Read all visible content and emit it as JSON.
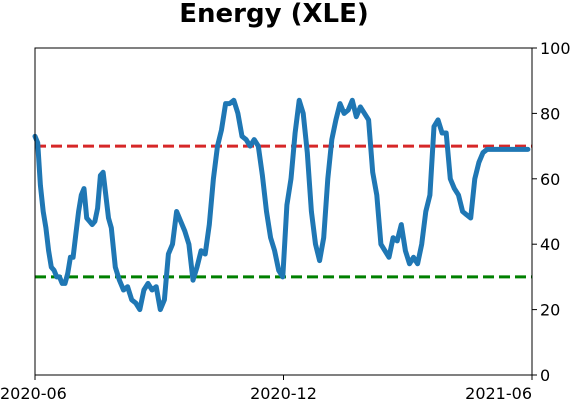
{
  "chart_data": {
    "type": "line",
    "title": "Energy (XLE)",
    "xlabel": "",
    "ylabel": "",
    "x_ticks": [
      "2020-06",
      "2020-12",
      "2021-06"
    ],
    "y_ticks": [
      0,
      20,
      40,
      60,
      80,
      100
    ],
    "ylim": [
      0,
      100
    ],
    "xlim": [
      "2020-06-01",
      "2021-06-01"
    ],
    "y_axis_side": "right",
    "grid": false,
    "reference_lines": [
      {
        "y": 70,
        "color": "#d62728",
        "style": "dashed"
      },
      {
        "y": 30,
        "color": "#008000",
        "style": "dashed"
      }
    ],
    "series": [
      {
        "color": "#1f77b4",
        "x": [
          "2020-06-01",
          "2020-06-03",
          "2020-06-05",
          "2020-06-07",
          "2020-06-09",
          "2020-06-11",
          "2020-06-13",
          "2020-06-15",
          "2020-06-17",
          "2020-06-19",
          "2020-06-21",
          "2020-06-23",
          "2020-06-25",
          "2020-06-27",
          "2020-06-29",
          "2020-07-01",
          "2020-07-03",
          "2020-07-05",
          "2020-07-07",
          "2020-07-09",
          "2020-07-11",
          "2020-07-13",
          "2020-07-15",
          "2020-07-17",
          "2020-07-19",
          "2020-07-21",
          "2020-07-23",
          "2020-07-25",
          "2020-07-27",
          "2020-07-30",
          "2020-08-02",
          "2020-08-05",
          "2020-08-08",
          "2020-08-11",
          "2020-08-14",
          "2020-08-17",
          "2020-08-20",
          "2020-08-23",
          "2020-08-26",
          "2020-08-29",
          "2020-09-01",
          "2020-09-04",
          "2020-09-07",
          "2020-09-10",
          "2020-09-13",
          "2020-09-16",
          "2020-09-19",
          "2020-09-22",
          "2020-09-25",
          "2020-09-28",
          "2020-10-01",
          "2020-10-04",
          "2020-10-07",
          "2020-10-10",
          "2020-10-13",
          "2020-10-16",
          "2020-10-19",
          "2020-10-22",
          "2020-10-25",
          "2020-10-28",
          "2020-10-31",
          "2020-11-03",
          "2020-11-06",
          "2020-11-09",
          "2020-11-12",
          "2020-11-15",
          "2020-11-18",
          "2020-11-21",
          "2020-11-24",
          "2020-11-27",
          "2020-11-30",
          "2020-12-03",
          "2020-12-06",
          "2020-12-09",
          "2020-12-12",
          "2020-12-15",
          "2020-12-18",
          "2020-12-21",
          "2020-12-24",
          "2020-12-27",
          "2020-12-30",
          "2021-01-02",
          "2021-01-05",
          "2021-01-08",
          "2021-01-11",
          "2021-01-14",
          "2021-01-17",
          "2021-01-20",
          "2021-01-23",
          "2021-01-26",
          "2021-01-29",
          "2021-02-01",
          "2021-02-04",
          "2021-02-07",
          "2021-02-10",
          "2021-02-13",
          "2021-02-16",
          "2021-02-19",
          "2021-02-22",
          "2021-02-25",
          "2021-02-28",
          "2021-03-03",
          "2021-03-06",
          "2021-03-09",
          "2021-03-12",
          "2021-03-15",
          "2021-03-18",
          "2021-03-21",
          "2021-03-24",
          "2021-03-27",
          "2021-03-30",
          "2021-04-02",
          "2021-04-05",
          "2021-04-08",
          "2021-04-11",
          "2021-04-14",
          "2021-04-17",
          "2021-04-20",
          "2021-04-23",
          "2021-04-26",
          "2021-04-29",
          "2021-05-02",
          "2021-05-05",
          "2021-05-08",
          "2021-05-11",
          "2021-05-14",
          "2021-05-17",
          "2021-05-20",
          "2021-05-23",
          "2021-05-26",
          "2021-05-29"
        ],
        "values": [
          73,
          71,
          58,
          50,
          45,
          38,
          33,
          32,
          30,
          30,
          28,
          28,
          31,
          36,
          36,
          43,
          50,
          55,
          57,
          48,
          47,
          46,
          47,
          51,
          61,
          62,
          55,
          48,
          45,
          33,
          29,
          26,
          27,
          23,
          22,
          20,
          26,
          28,
          26,
          27,
          20,
          23,
          37,
          40,
          50,
          47,
          44,
          40,
          29,
          33,
          38,
          37,
          46,
          60,
          70,
          75,
          83,
          83,
          84,
          80,
          73,
          72,
          70,
          72,
          70,
          61,
          50,
          42,
          38,
          32,
          30,
          52,
          60,
          74,
          84,
          80,
          68,
          50,
          40,
          35,
          42,
          60,
          72,
          78,
          83,
          80,
          81,
          84,
          79,
          82,
          80,
          78,
          62,
          55,
          40,
          38,
          36,
          42,
          41,
          46,
          38,
          34,
          36,
          34,
          40,
          50,
          55,
          76,
          78,
          74,
          74,
          60,
          57,
          55,
          50,
          49,
          48,
          60,
          65,
          68,
          69,
          69,
          69,
          69,
          69,
          69,
          69,
          69,
          69,
          69,
          69
        ]
      }
    ]
  }
}
